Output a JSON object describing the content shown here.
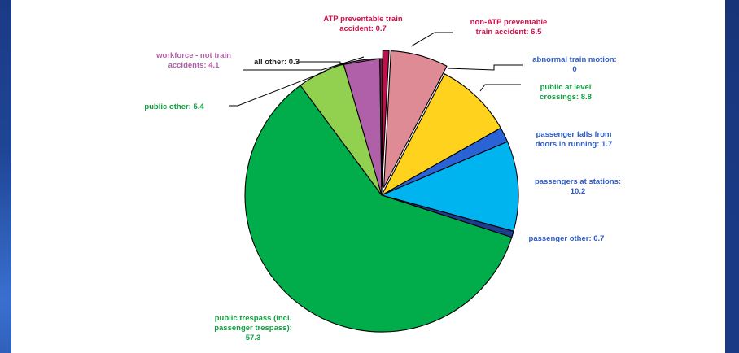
{
  "chart_data": {
    "type": "pie",
    "title": "",
    "slices": [
      {
        "label": "ATP preventable train accident: 0.7",
        "value": 0.7,
        "color": "#c0104b",
        "exploded": true
      },
      {
        "label": "non-ATP preventable train accident: 6.5",
        "value": 6.5,
        "color": "#df8b95",
        "exploded": true
      },
      {
        "label": "abnormal train motion: 0",
        "value": 0,
        "color": "#2050c0",
        "exploded": false
      },
      {
        "label": "public at level crossings: 8.8",
        "value": 8.8,
        "color": "#ffd21e",
        "exploded": false
      },
      {
        "label": "passenger falls from doors in running: 1.7",
        "value": 1.7,
        "color": "#2a63d6",
        "exploded": false
      },
      {
        "label": "passengers at stations: 10.2",
        "value": 10.2,
        "color": "#00b4f0",
        "exploded": false
      },
      {
        "label": "passenger other: 0.7",
        "value": 0.7,
        "color": "#1d3c90",
        "exploded": false
      },
      {
        "label": "public trespass (incl. passenger trespass): 57.3",
        "value": 57.3,
        "color": "#00ad4a",
        "exploded": false
      },
      {
        "label": "public other: 5.4",
        "value": 5.4,
        "color": "#92d050",
        "exploded": false
      },
      {
        "label": "workforce - not train accidents: 4.1",
        "value": 4.1,
        "color": "#b060a8",
        "exploded": false
      },
      {
        "label": "all other: 0.3",
        "value": 0.3,
        "color": "#7a1c3c",
        "exploded": false
      }
    ]
  },
  "labels": {
    "atp": {
      "lines": [
        "ATP preventable train",
        "accident:  0.7"
      ],
      "color": "#d0104a"
    },
    "non_atp": {
      "lines": [
        "non-ATP preventable",
        "train accident:  6.5"
      ],
      "color": "#d0104a"
    },
    "abnormal": {
      "lines": [
        "abnormal train motion:",
        "0"
      ],
      "color": "#2f5bc8"
    },
    "level_crossings": {
      "lines": [
        "public at level",
        "crossings:  8.8"
      ],
      "color": "#10a040"
    },
    "falls": {
      "lines": [
        "passenger falls from",
        "doors in running:  1.7"
      ],
      "color": "#2f5bc8"
    },
    "stations": {
      "lines": [
        "passengers at stations:",
        "10.2"
      ],
      "color": "#2f5bc8"
    },
    "passenger_other": {
      "lines": [
        "passenger other:  0.7"
      ],
      "color": "#2f5bc8"
    },
    "trespass": {
      "lines": [
        "public trespass (incl.",
        "passenger trespass):",
        "57.3"
      ],
      "color": "#10a040"
    },
    "public_other": {
      "lines": [
        "public other:  5.4"
      ],
      "color": "#10a040"
    },
    "workforce": {
      "lines": [
        "workforce - not train",
        "accidents:  4.1"
      ],
      "color": "#b060a8"
    },
    "all_other": {
      "lines": [
        "all other:  0.3"
      ],
      "color": "#222222"
    }
  }
}
